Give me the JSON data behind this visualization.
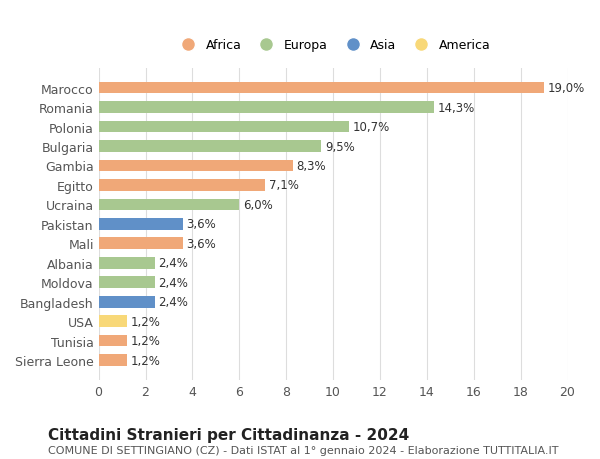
{
  "countries": [
    "Sierra Leone",
    "Tunisia",
    "USA",
    "Bangladesh",
    "Moldova",
    "Albania",
    "Mali",
    "Pakistan",
    "Ucraina",
    "Egitto",
    "Gambia",
    "Bulgaria",
    "Polonia",
    "Romania",
    "Marocco"
  ],
  "values": [
    1.2,
    1.2,
    1.2,
    2.4,
    2.4,
    2.4,
    3.6,
    3.6,
    6.0,
    7.1,
    8.3,
    9.5,
    10.7,
    14.3,
    19.0
  ],
  "continents": [
    "Africa",
    "Africa",
    "America",
    "Asia",
    "Europa",
    "Europa",
    "Africa",
    "Asia",
    "Europa",
    "Africa",
    "Africa",
    "Europa",
    "Europa",
    "Europa",
    "Africa"
  ],
  "colors": {
    "Africa": "#F0A878",
    "Europa": "#A8C890",
    "Asia": "#6090C8",
    "America": "#F8D878"
  },
  "legend_order": [
    "Africa",
    "Europa",
    "Asia",
    "America"
  ],
  "xlim": [
    0,
    20
  ],
  "xticks": [
    0,
    2,
    4,
    6,
    8,
    10,
    12,
    14,
    16,
    18,
    20
  ],
  "title": "Cittadini Stranieri per Cittadinanza - 2024",
  "subtitle": "COMUNE DI SETTINGIANO (CZ) - Dati ISTAT al 1° gennaio 2024 - Elaborazione TUTTITALIA.IT",
  "title_fontsize": 11,
  "subtitle_fontsize": 8,
  "label_fontsize": 8.5,
  "background_color": "#ffffff",
  "grid_color": "#dddddd"
}
